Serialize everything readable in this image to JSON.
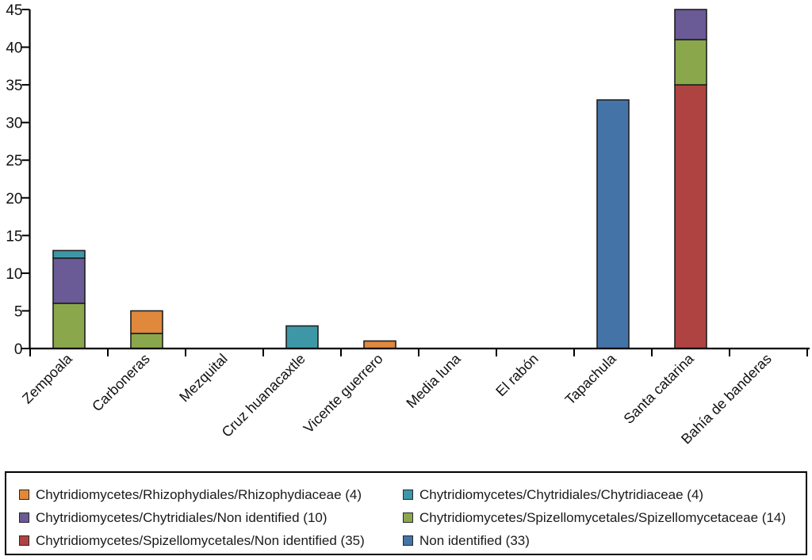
{
  "chart_data": {
    "type": "bar",
    "stacked": true,
    "title": "",
    "xlabel": "",
    "ylabel": "",
    "grid": false,
    "legend_position": "bottom",
    "ylim": [
      0,
      45
    ],
    "yticks": [
      0,
      5,
      10,
      15,
      20,
      25,
      30,
      35,
      40,
      45
    ],
    "categories": [
      "Zempoala",
      "Carboneras",
      "Mezquital",
      "Cruz huanacaxtle",
      "Vicente guerrero",
      "Media luna",
      "El rabón",
      "Tapachula",
      "Santa catarina",
      "Bahía de banderas"
    ],
    "series": [
      {
        "name": "Non identified (33)",
        "color": "#4473a8",
        "values": [
          0,
          0,
          0,
          0,
          0,
          0,
          0,
          33,
          0,
          0
        ]
      },
      {
        "name": "Chytridiomycetes/Spizellomycetales/Non identified (35)",
        "color": "#af4342",
        "values": [
          0,
          0,
          0,
          0,
          0,
          0,
          0,
          0,
          35,
          0
        ]
      },
      {
        "name": "Chytridiomycetes/Spizellomycetales/Spizellomycetaceae (14)",
        "color": "#8aa84b",
        "values": [
          6,
          2,
          0,
          0,
          0,
          0,
          0,
          0,
          6,
          0
        ]
      },
      {
        "name": "Chytridiomycetes/Chytridiales/Non identified (10)",
        "color": "#6a5a96",
        "values": [
          6,
          0,
          0,
          0,
          0,
          0,
          0,
          0,
          4,
          0
        ]
      },
      {
        "name": "Chytridiomycetes/Chytridiales/Chytridiaceae (4)",
        "color": "#3e97a7",
        "values": [
          1,
          0,
          0,
          3,
          0,
          0,
          0,
          0,
          0,
          0
        ]
      },
      {
        "name": "Chytridiomycetes/Rhizophydiales/Rhizophydiaceae (4)",
        "color": "#e0883c",
        "values": [
          0,
          3,
          0,
          0,
          1,
          0,
          0,
          0,
          0,
          0
        ]
      }
    ],
    "legend_order": [
      "Chytridiomycetes/Rhizophydiales/Rhizophydiaceae (4)",
      "Chytridiomycetes/Chytridiales/Non identified (10)",
      "Chytridiomycetes/Spizellomycetales/Non identified (35)",
      "Chytridiomycetes/Chytridiales/Chytridiaceae (4)",
      "Chytridiomycetes/Spizellomycetales/Spizellomycetaceae (14)",
      "Non identified (33)"
    ],
    "bar_totals": {
      "Zempoala": 13,
      "Carboneras": 5,
      "Mezquital": 0,
      "Cruz huanacaxtle": 3,
      "Vicente guerrero": 1,
      "Media luna": 0,
      "El rabón": 0,
      "Tapachula": 33,
      "Santa catarina": 45,
      "Bahía de banderas": 0
    }
  },
  "colors": {
    "background": "#ffffff",
    "axis": "#000000",
    "bar_outline": "#1f1f1f",
    "legend_border": "#000000",
    "text": "#111111"
  }
}
